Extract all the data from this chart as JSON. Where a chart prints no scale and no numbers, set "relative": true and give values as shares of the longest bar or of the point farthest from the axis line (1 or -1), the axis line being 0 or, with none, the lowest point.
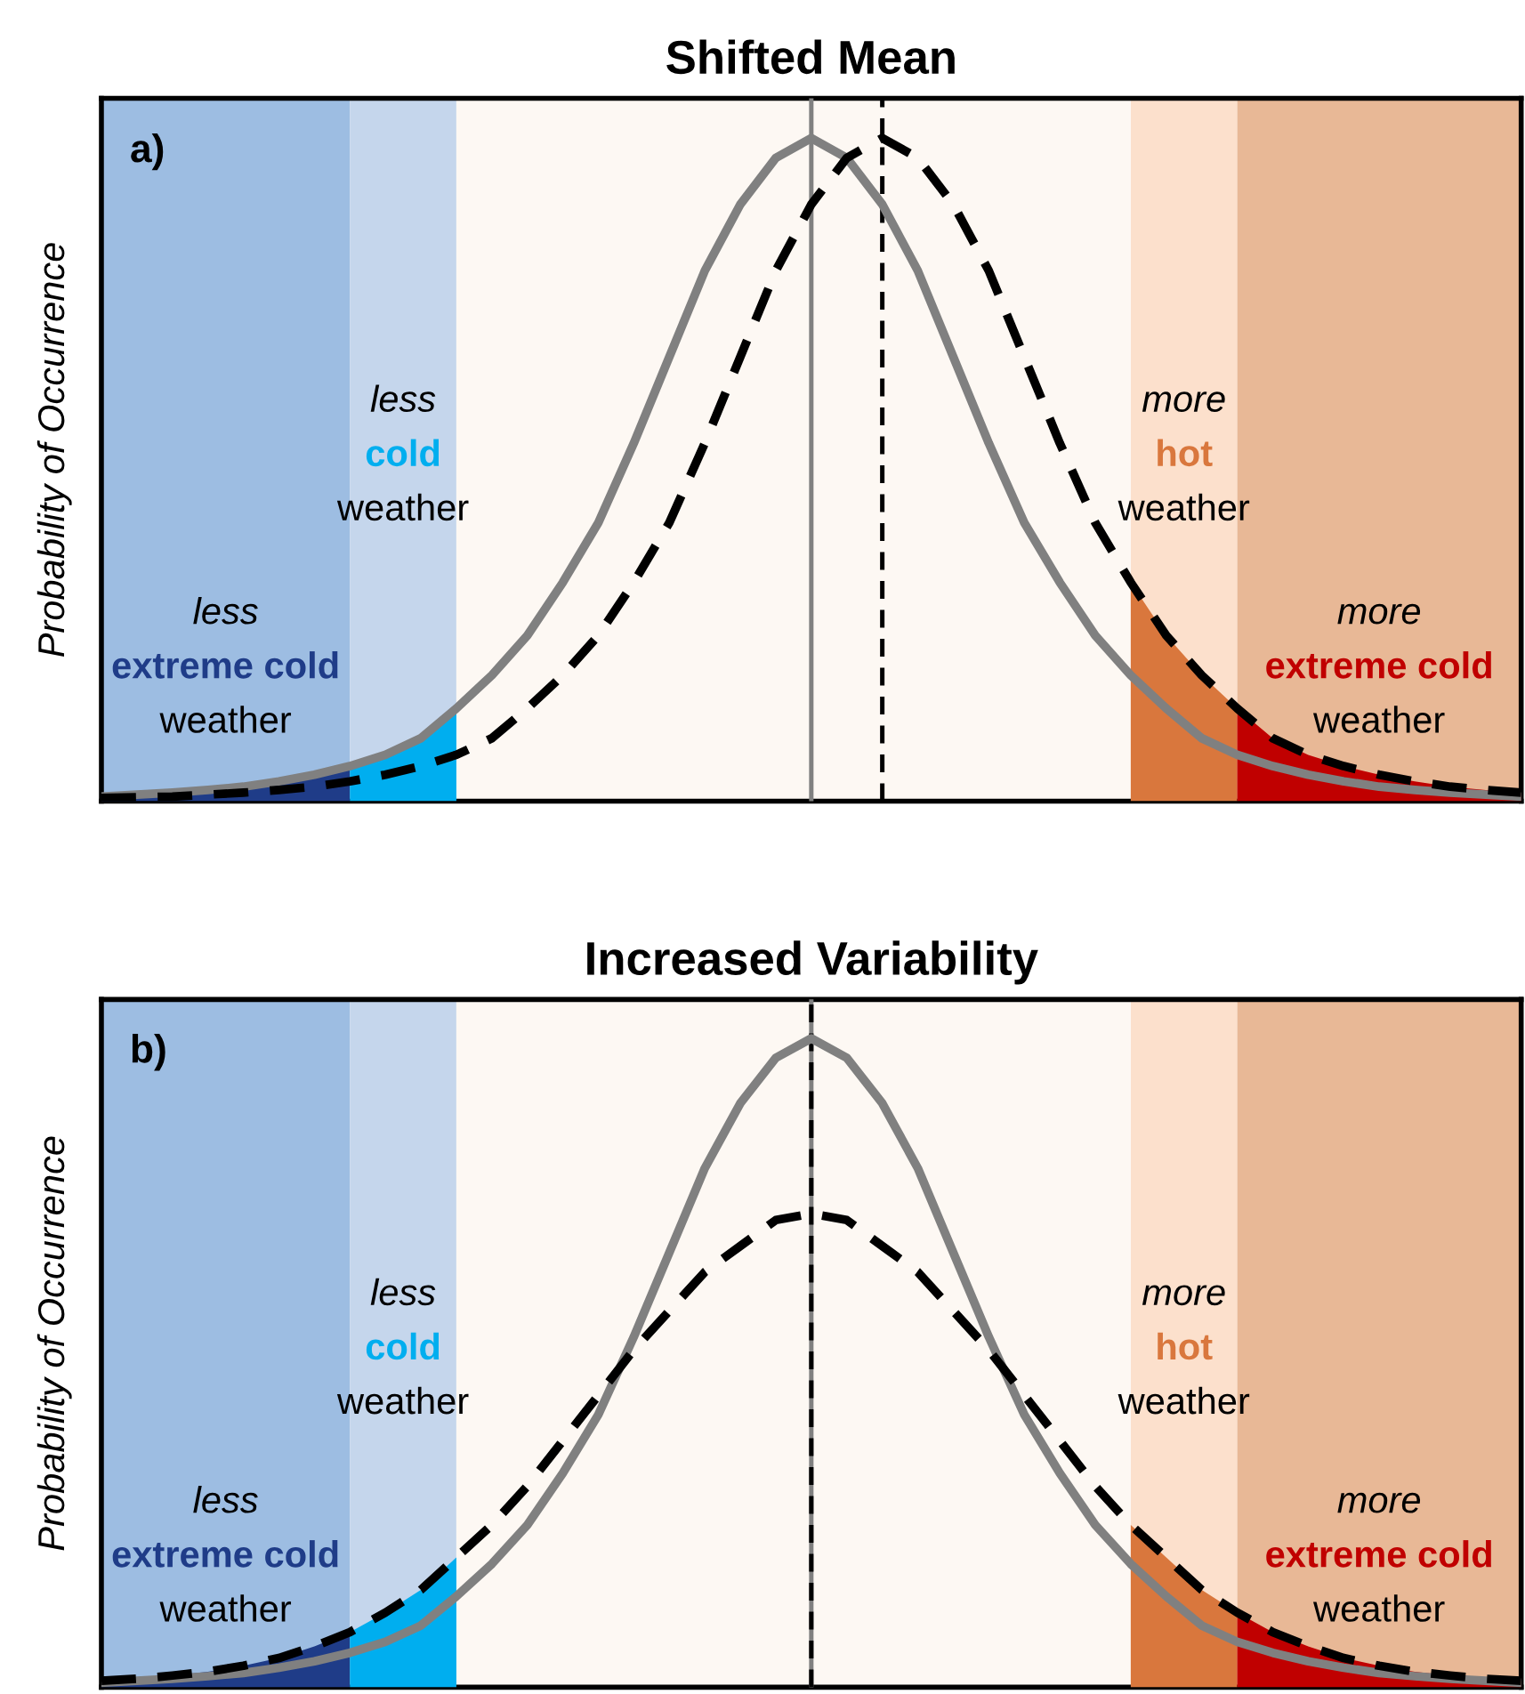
{
  "chart_data": [
    {
      "type": "line",
      "title": "Shifted Mean",
      "ylabel": "Probability of Occurrence",
      "relative": true,
      "tick_labels": false,
      "categories": [
        null,
        null,
        null,
        null,
        null,
        null,
        null,
        null,
        null,
        null,
        null,
        null,
        null,
        null,
        null,
        null,
        null,
        null,
        null,
        null,
        null,
        null,
        null,
        null,
        null,
        null,
        null,
        null,
        null,
        null,
        null,
        null,
        null,
        null,
        null,
        null,
        null,
        null,
        null,
        null,
        null
      ],
      "annotations": [
        "a)",
        "less\nextreme cold\nweather",
        "less\ncold\nweather",
        "more\nhot\nweather",
        "more\nextreme cold\nweather"
      ],
      "series": [
        {
          "type": "area",
          "color": "#1f3c88",
          "values": [
            0.007,
            0.01,
            0.013,
            0.017,
            0.022,
            0.03,
            0.04,
            0.053,
            null,
            null,
            null,
            null,
            null,
            null,
            null,
            null,
            null,
            null,
            null,
            null,
            null,
            null,
            null,
            null,
            null,
            null,
            null,
            null,
            null,
            null,
            null,
            null,
            null,
            null,
            null,
            null,
            null,
            null,
            null,
            null,
            null
          ]
        },
        {
          "type": "area",
          "color": "#00aeef",
          "values": [
            null,
            null,
            null,
            null,
            null,
            null,
            null,
            0.053,
            0.07,
            0.095,
            0.14,
            null,
            null,
            null,
            null,
            null,
            null,
            null,
            null,
            null,
            null,
            null,
            null,
            null,
            null,
            null,
            null,
            null,
            null,
            null,
            null,
            null,
            null,
            null,
            null,
            null,
            null,
            null,
            null,
            null,
            null
          ]
        },
        {
          "type": "area",
          "color": "#d9773d",
          "values": [
            null,
            null,
            null,
            null,
            null,
            null,
            null,
            null,
            null,
            null,
            null,
            null,
            null,
            null,
            null,
            null,
            null,
            null,
            null,
            null,
            null,
            null,
            null,
            null,
            null,
            null,
            null,
            null,
            null,
            0.33,
            0.25,
            0.19,
            0.14,
            null,
            null,
            null,
            null,
            null,
            null,
            null,
            null
          ]
        },
        {
          "type": "area",
          "color": "#c00000",
          "values": [
            null,
            null,
            null,
            null,
            null,
            null,
            null,
            null,
            null,
            null,
            null,
            null,
            null,
            null,
            null,
            null,
            null,
            null,
            null,
            null,
            null,
            null,
            null,
            null,
            null,
            null,
            null,
            null,
            null,
            null,
            null,
            null,
            0.14,
            0.095,
            0.07,
            0.053,
            0.04,
            0.03,
            0.022,
            0.017,
            0.013
          ]
        },
        {
          "color": "#808080",
          "line_style": "solid",
          "values": [
            0.007,
            0.01,
            0.013,
            0.017,
            0.022,
            0.03,
            0.04,
            0.053,
            0.07,
            0.095,
            0.14,
            0.19,
            0.25,
            0.33,
            0.42,
            0.54,
            0.67,
            0.8,
            0.9,
            0.97,
            1,
            0.97,
            0.9,
            0.8,
            0.67,
            0.54,
            0.42,
            0.33,
            0.25,
            0.19,
            0.14,
            0.095,
            0.07,
            0.053,
            0.04,
            0.03,
            0.022,
            0.017,
            0.013,
            0.01,
            0.007
          ]
        },
        {
          "color": "#000000",
          "line_style": "dashed",
          "values": [
            0.005,
            0.006,
            0.007,
            0.01,
            0.013,
            0.017,
            0.022,
            0.03,
            0.04,
            0.053,
            0.07,
            0.095,
            0.14,
            0.19,
            0.25,
            0.33,
            0.42,
            0.54,
            0.67,
            0.8,
            0.9,
            0.97,
            1,
            0.97,
            0.9,
            0.8,
            0.67,
            0.54,
            0.42,
            0.33,
            0.25,
            0.19,
            0.14,
            0.095,
            0.07,
            0.053,
            0.04,
            0.03,
            0.022,
            0.017,
            0.013
          ]
        }
      ]
    },
    {
      "type": "line",
      "title": "Increased Variability",
      "ylabel": "Probability of Occurrence",
      "relative": true,
      "tick_labels": false,
      "categories": [
        null,
        null,
        null,
        null,
        null,
        null,
        null,
        null,
        null,
        null,
        null,
        null,
        null,
        null,
        null,
        null,
        null,
        null,
        null,
        null,
        null,
        null,
        null,
        null,
        null,
        null,
        null,
        null,
        null,
        null,
        null,
        null,
        null,
        null,
        null,
        null,
        null,
        null,
        null,
        null,
        null
      ],
      "annotations": [
        "b)",
        "less\nextreme cold\nweather",
        "less\ncold\nweather",
        "more\nhot\nweather",
        "more\nextreme cold\nweather"
      ],
      "series": [
        {
          "type": "area",
          "color": "#1f3c88",
          "values": [
            0.01,
            0.013,
            0.018,
            0.024,
            0.033,
            0.045,
            0.063,
            0.085,
            null,
            null,
            null,
            null,
            null,
            null,
            null,
            null,
            null,
            null,
            null,
            null,
            null,
            null,
            null,
            null,
            null,
            null,
            null,
            null,
            null,
            null,
            null,
            null,
            null,
            null,
            null,
            null,
            null,
            null,
            null,
            null,
            null
          ]
        },
        {
          "type": "area",
          "color": "#00aeef",
          "values": [
            null,
            null,
            null,
            null,
            null,
            null,
            null,
            0.085,
            0.115,
            0.15,
            0.2,
            null,
            null,
            null,
            null,
            null,
            null,
            null,
            null,
            null,
            null,
            null,
            null,
            null,
            null,
            null,
            null,
            null,
            null,
            null,
            null,
            null,
            null,
            null,
            null,
            null,
            null,
            null,
            null,
            null,
            null
          ]
        },
        {
          "type": "area",
          "color": "#d9773d",
          "values": [
            null,
            null,
            null,
            null,
            null,
            null,
            null,
            null,
            null,
            null,
            null,
            null,
            null,
            null,
            null,
            null,
            null,
            null,
            null,
            null,
            null,
            null,
            null,
            null,
            null,
            null,
            null,
            null,
            null,
            0.25,
            0.2,
            0.15,
            0.115,
            null,
            null,
            null,
            null,
            null,
            null,
            null,
            null
          ]
        },
        {
          "type": "area",
          "color": "#c00000",
          "values": [
            null,
            null,
            null,
            null,
            null,
            null,
            null,
            null,
            null,
            null,
            null,
            null,
            null,
            null,
            null,
            null,
            null,
            null,
            null,
            null,
            null,
            null,
            null,
            null,
            null,
            null,
            null,
            null,
            null,
            null,
            null,
            null,
            0.115,
            0.085,
            0.063,
            0.045,
            0.033,
            0.024,
            0.018,
            0.013,
            0.01
          ]
        },
        {
          "color": "#808080",
          "line_style": "solid",
          "values": [
            0.007,
            0.01,
            0.013,
            0.017,
            0.022,
            0.03,
            0.04,
            0.053,
            0.07,
            0.095,
            0.14,
            0.19,
            0.25,
            0.33,
            0.42,
            0.54,
            0.67,
            0.8,
            0.9,
            0.97,
            1,
            0.97,
            0.9,
            0.8,
            0.67,
            0.54,
            0.42,
            0.33,
            0.25,
            0.19,
            0.14,
            0.095,
            0.07,
            0.053,
            0.04,
            0.03,
            0.022,
            0.017,
            0.013,
            0.01,
            0.007
          ]
        },
        {
          "color": "#000000",
          "line_style": "dashed",
          "values": [
            0.01,
            0.013,
            0.018,
            0.024,
            0.033,
            0.045,
            0.063,
            0.085,
            0.115,
            0.15,
            0.2,
            0.25,
            0.31,
            0.38,
            0.45,
            0.52,
            0.58,
            0.64,
            0.68,
            0.72,
            0.73,
            0.72,
            0.68,
            0.64,
            0.58,
            0.52,
            0.45,
            0.38,
            0.31,
            0.25,
            0.2,
            0.15,
            0.115,
            0.085,
            0.063,
            0.045,
            0.033,
            0.024,
            0.018,
            0.013,
            0.01
          ]
        }
      ]
    }
  ]
}
